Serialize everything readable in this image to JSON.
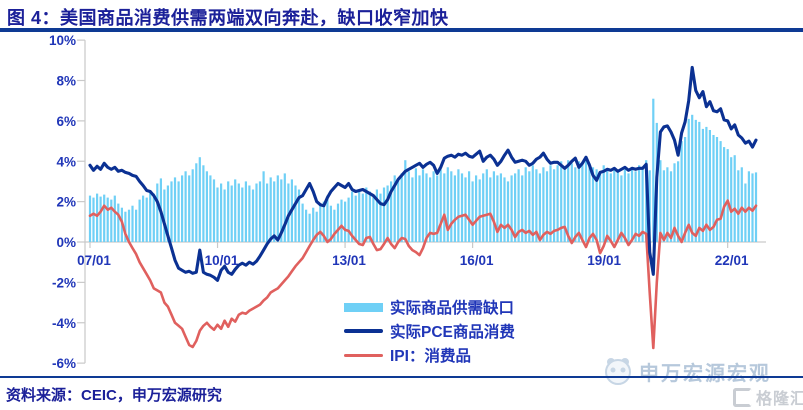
{
  "title": "图 4：美国商品消费供需两端双向奔赴，缺口收窄加快",
  "source": "资料来源：CEIC，申万宏源研究",
  "watermarks": {
    "swhy": "申万宏源宏观",
    "gelonghui": "格隆汇"
  },
  "colors": {
    "title_ink": "#1b2099",
    "rule": "#0e3a94",
    "axis_label": "#2036b8",
    "axis_line": "#c9c9c9",
    "bar": "#6fd0f6",
    "pce": "#0b3193",
    "ipi": "#e0605e",
    "legend_text": "#2036b8",
    "watermark_blue": "#b3c6da",
    "watermark_gray": "#c9cdd3"
  },
  "chart_data": {
    "type": "bar",
    "subtype": "bar+line combo, monthly series",
    "unit": "%",
    "x_start": "2007-01",
    "x_end": "2022-09",
    "x_freq": "monthly",
    "x_axis": {
      "tick_month_indices": [
        0,
        36,
        72,
        108,
        144,
        180
      ],
      "tick_labels": [
        "07/01",
        "10/01",
        "13/01",
        "16/01",
        "19/01",
        "22/01"
      ]
    },
    "y_axis": {
      "range": [
        -6,
        10
      ],
      "tick_values": [
        10,
        8,
        6,
        4,
        2,
        0,
        -2,
        -4,
        -6
      ],
      "tick_labels": [
        "10%",
        "8%",
        "6%",
        "4%",
        "2%",
        "0%",
        "-2%",
        "-4%",
        "-6%"
      ]
    },
    "legend_position": "inside-bottom-center",
    "series": [
      {
        "name": "实际商品供需缺口",
        "type": "bar",
        "color": "#6fd0f6",
        "values": [
          2.3,
          2.2,
          2.4,
          2.25,
          2.35,
          2.2,
          2.1,
          2.3,
          1.9,
          1.7,
          1.5,
          1.6,
          1.8,
          1.6,
          2.1,
          2.3,
          2.2,
          2.5,
          2.4,
          2.9,
          3.15,
          2.6,
          2.8,
          3.0,
          3.2,
          3.0,
          3.3,
          3.5,
          3.3,
          3.6,
          3.9,
          4.2,
          3.8,
          3.5,
          3.3,
          3.1,
          2.7,
          2.9,
          2.6,
          3.0,
          2.8,
          3.1,
          2.9,
          2.7,
          3.0,
          2.8,
          2.6,
          2.9,
          3.0,
          3.5,
          2.9,
          3.2,
          3.0,
          3.3,
          3.1,
          3.4,
          2.9,
          3.1,
          2.8,
          2.6,
          1.9,
          1.6,
          1.4,
          1.7,
          1.5,
          1.8,
          2.0,
          2.3,
          1.8,
          1.6,
          1.9,
          2.1,
          2.0,
          2.2,
          2.5,
          2.3,
          2.6,
          2.4,
          2.7,
          2.5,
          2.3,
          2.6,
          2.4,
          2.7,
          2.8,
          3.0,
          3.3,
          3.1,
          3.4,
          4.05,
          3.5,
          3.2,
          3.65,
          3.3,
          3.6,
          3.4,
          3.2,
          3.5,
          3.3,
          3.6,
          3.4,
          3.7,
          3.5,
          3.3,
          3.6,
          3.4,
          3.2,
          3.5,
          3.0,
          3.3,
          3.1,
          3.4,
          3.6,
          3.2,
          3.5,
          3.3,
          3.4,
          3.2,
          3.0,
          3.3,
          3.4,
          3.6,
          3.3,
          3.7,
          3.5,
          3.8,
          3.6,
          3.4,
          3.7,
          3.5,
          3.8,
          3.6,
          3.8,
          4.0,
          3.7,
          4.05,
          3.9,
          3.7,
          4.0,
          3.9,
          4.15,
          3.9,
          3.7,
          3.6,
          3.5,
          3.8,
          3.6,
          3.4,
          3.7,
          3.5,
          3.3,
          3.6,
          3.4,
          3.7,
          3.5,
          3.8,
          3.6,
          4.05,
          3.55,
          7.1,
          5.9,
          4.05,
          3.55,
          3.7,
          3.5,
          3.9,
          4.0,
          5.0,
          5.2,
          6.1,
          6.3,
          6.05,
          5.95,
          5.6,
          5.7,
          5.55,
          5.3,
          5.2,
          5.0,
          4.7,
          4.6,
          4.2,
          4.3,
          3.55,
          3.7,
          2.9,
          3.5,
          3.4,
          3.45
        ]
      },
      {
        "name": "实际PCE商品消费",
        "type": "line",
        "color": "#0b3193",
        "values": [
          3.8,
          3.55,
          3.75,
          3.6,
          3.9,
          3.7,
          3.6,
          3.7,
          3.5,
          3.55,
          3.45,
          3.4,
          3.3,
          3.25,
          3.0,
          2.8,
          2.55,
          2.5,
          2.3,
          2.0,
          1.5,
          0.9,
          0.3,
          -0.3,
          -0.9,
          -1.3,
          -1.4,
          -1.5,
          -1.45,
          -1.55,
          -1.5,
          -0.4,
          -1.5,
          -1.6,
          -1.65,
          -1.75,
          -1.9,
          -1.4,
          -1.2,
          -1.5,
          -1.6,
          -1.35,
          -1.15,
          -1.05,
          -1.15,
          -1.0,
          -1.1,
          -0.95,
          -0.7,
          -0.4,
          -0.1,
          0.15,
          0.3,
          0.1,
          0.45,
          0.85,
          1.3,
          1.6,
          1.9,
          2.2,
          2.3,
          2.6,
          2.9,
          2.5,
          2.0,
          1.85,
          1.8,
          2.2,
          2.5,
          2.7,
          2.9,
          2.8,
          2.7,
          2.9,
          2.6,
          2.5,
          2.55,
          2.6,
          2.5,
          2.4,
          2.3,
          2.1,
          1.9,
          1.85,
          2.1,
          2.5,
          2.8,
          3.1,
          3.3,
          3.5,
          3.6,
          3.7,
          3.8,
          3.9,
          3.7,
          3.85,
          3.95,
          3.8,
          3.4,
          3.7,
          4.15,
          4.25,
          4.3,
          4.2,
          4.35,
          4.3,
          4.4,
          4.25,
          4.2,
          4.35,
          4.5,
          4.0,
          4.2,
          4.3,
          4.1,
          3.8,
          4.0,
          4.3,
          4.55,
          4.2,
          3.95,
          4.0,
          4.05,
          4.0,
          3.8,
          3.9,
          4.1,
          4.2,
          4.4,
          4.1,
          3.9,
          3.95,
          3.95,
          3.8,
          3.65,
          3.8,
          4.0,
          4.15,
          3.7,
          3.9,
          4.2,
          3.8,
          3.3,
          3.05,
          3.45,
          3.5,
          3.6,
          3.55,
          3.65,
          3.5,
          3.6,
          3.7,
          3.55,
          3.65,
          3.6,
          3.65,
          3.65,
          3.85,
          -0.5,
          -1.6,
          3.2,
          5.45,
          5.7,
          5.75,
          5.45,
          5.05,
          4.3,
          5.4,
          5.95,
          7.0,
          8.65,
          7.5,
          7.15,
          7.45,
          6.7,
          6.95,
          6.5,
          6.45,
          6.6,
          6.05,
          6.0,
          5.6,
          5.8,
          5.3,
          5.15,
          4.9,
          5.0,
          4.7,
          5.05
        ]
      },
      {
        "name": "IPI：消费品",
        "type": "line",
        "color": "#e0605e",
        "values": [
          1.3,
          1.4,
          1.3,
          1.5,
          1.8,
          1.6,
          1.7,
          1.5,
          1.35,
          1.0,
          0.4,
          0.0,
          -0.3,
          -0.6,
          -1.0,
          -1.3,
          -1.6,
          -1.9,
          -2.3,
          -2.4,
          -2.5,
          -3.0,
          -3.2,
          -3.6,
          -4.0,
          -4.15,
          -4.3,
          -4.7,
          -5.1,
          -5.2,
          -4.9,
          -4.4,
          -4.15,
          -4.0,
          -4.2,
          -4.35,
          -4.1,
          -4.3,
          -3.9,
          -4.2,
          -3.8,
          -3.95,
          -3.6,
          -3.5,
          -3.55,
          -3.4,
          -3.3,
          -3.2,
          -3.1,
          -2.9,
          -2.75,
          -2.5,
          -2.4,
          -2.3,
          -2.1,
          -1.9,
          -1.7,
          -1.45,
          -1.2,
          -1.0,
          -0.8,
          -0.5,
          -0.2,
          0.1,
          0.35,
          0.5,
          0.3,
          0.0,
          0.15,
          0.4,
          0.6,
          0.8,
          0.6,
          0.55,
          0.3,
          0.1,
          -0.1,
          -0.15,
          0.2,
          0.25,
          -0.1,
          -0.4,
          -0.35,
          -0.1,
          0.2,
          -0.1,
          -0.3,
          0.0,
          0.2,
          0.15,
          -0.2,
          -0.4,
          -0.5,
          -0.65,
          -0.3,
          0.2,
          0.45,
          0.4,
          0.45,
          0.9,
          1.35,
          0.6,
          0.9,
          1.1,
          1.25,
          1.3,
          1.35,
          1.1,
          0.85,
          1.05,
          1.25,
          1.3,
          1.35,
          1.4,
          1.0,
          0.5,
          0.85,
          0.7,
          0.85,
          0.6,
          0.25,
          0.5,
          0.6,
          0.45,
          0.55,
          0.35,
          0.5,
          0.1,
          0.35,
          0.5,
          0.4,
          0.55,
          0.6,
          0.7,
          0.75,
          0.3,
          -0.05,
          0.25,
          0.45,
          0.1,
          -0.25,
          0.2,
          0.4,
          0.1,
          -0.55,
          -0.2,
          0.3,
          0.05,
          -0.25,
          0.1,
          0.45,
          0.2,
          -0.15,
          0.1,
          0.4,
          0.3,
          0.5,
          0.4,
          -2.5,
          -5.25,
          -2.0,
          0.45,
          0.1,
          0.45,
          0.2,
          0.7,
          0.3,
          0.0,
          0.45,
          0.85,
          0.45,
          0.3,
          0.7,
          0.55,
          0.85,
          0.6,
          0.75,
          1.1,
          1.15,
          1.75,
          2.05,
          1.5,
          1.65,
          1.4,
          1.7,
          1.5,
          1.7,
          1.55,
          1.8
        ]
      }
    ]
  }
}
